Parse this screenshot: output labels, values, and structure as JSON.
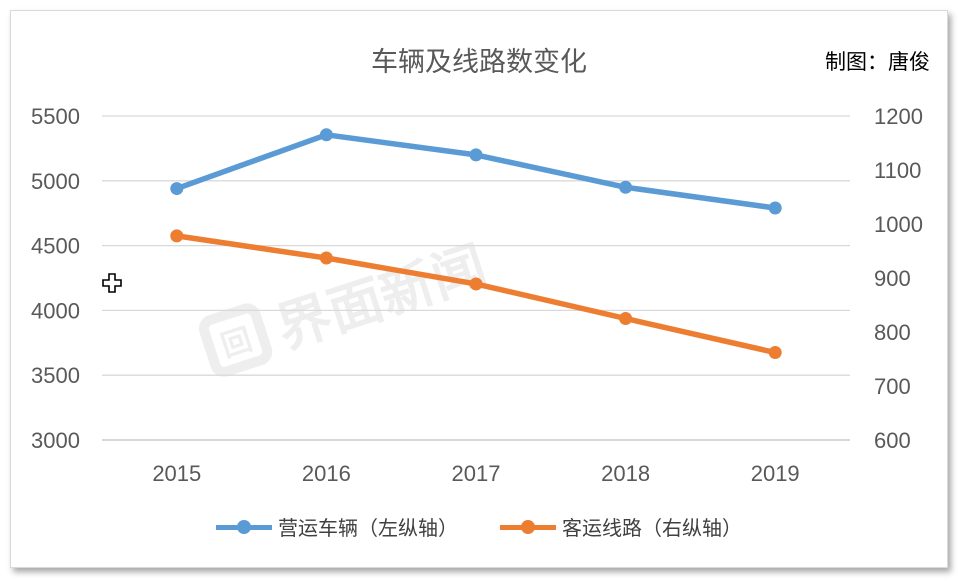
{
  "chart_data": {
    "type": "line",
    "title": "车辆及线路数变化",
    "credit": "制图：唐俊",
    "categories": [
      "2015",
      "2016",
      "2017",
      "2018",
      "2019"
    ],
    "left_axis": {
      "min": 3000,
      "max": 5500,
      "ticks": [
        3000,
        3500,
        4000,
        4500,
        5000,
        5500
      ]
    },
    "right_axis": {
      "min": 600,
      "max": 1200,
      "ticks": [
        600,
        700,
        800,
        900,
        1000,
        1100,
        1200
      ]
    },
    "series": [
      {
        "name": "营运车辆（左纵轴）",
        "axis": "left",
        "color": "#5B9BD5",
        "values": [
          4940,
          5355,
          5200,
          4950,
          4790
        ]
      },
      {
        "name": "客运线路（右纵轴）",
        "axis": "right",
        "color": "#ED7D31",
        "values": [
          978,
          937,
          889,
          825,
          762
        ]
      }
    ],
    "legend": "bottom"
  },
  "watermark": {
    "text": "界面新闻",
    "logo_glyph": "回"
  },
  "cursor_icon": "move-cursor-icon"
}
